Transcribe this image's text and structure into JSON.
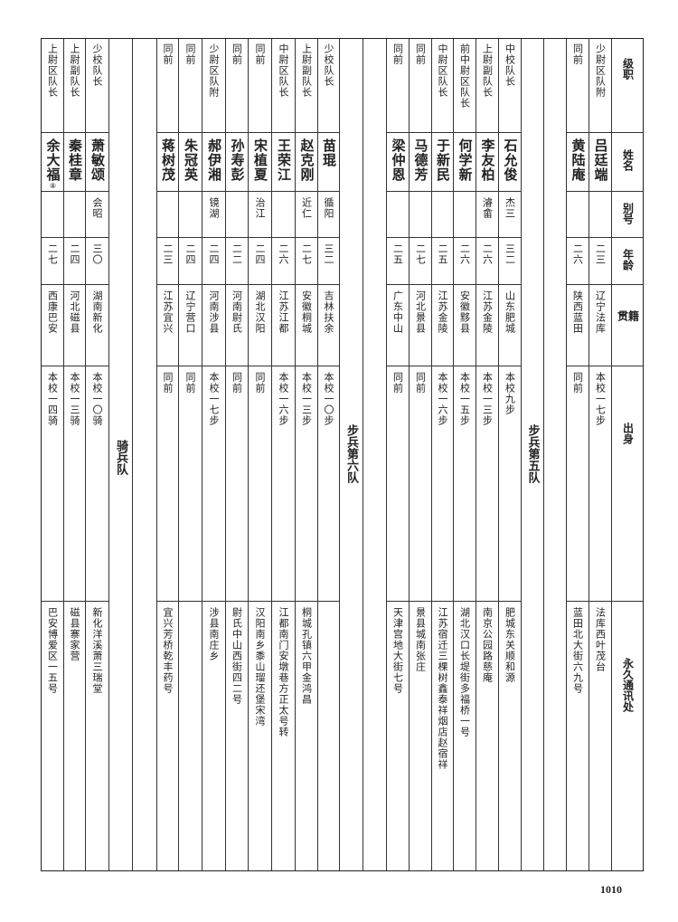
{
  "header": {
    "rank": "级职",
    "name": "姓名",
    "alias": "别号",
    "age": "年龄",
    "native": "籍贯",
    "origin": "出身",
    "address": "永久通讯处"
  },
  "sections": [
    {
      "label": "",
      "entries": [
        {
          "rank": "少尉区队附",
          "name": "吕廷端",
          "alias": "",
          "age": "二三",
          "native": "辽宁法库",
          "origin": "本校一七步",
          "address": "法库西叶茂台"
        },
        {
          "rank": "同前",
          "name": "黄陆庵",
          "alias": "",
          "age": "二六",
          "native": "陕西蓝田",
          "origin": "同前",
          "address": "蓝田北大街六九号"
        }
      ]
    },
    {
      "label": "步兵第五队",
      "entries": [
        {
          "rank": "中校队长",
          "name": "石允俊",
          "alias": "杰三",
          "age": "三二",
          "native": "山东肥城",
          "origin": "本校九步",
          "address": "肥城东关顺和源"
        },
        {
          "rank": "上尉副队长",
          "name": "李友柏",
          "alias": "濬畲",
          "age": "二六",
          "native": "江苏金陵",
          "origin": "本校一三步",
          "address": "南京公园路慈庵"
        },
        {
          "rank": "前中尉区队长",
          "name": "何学新",
          "alias": "",
          "age": "二六",
          "native": "安徽黟县",
          "origin": "本校一五步",
          "address": "湖北汉口长堤街多福桥一号"
        },
        {
          "rank": "中尉区队长",
          "name": "于新民",
          "alias": "",
          "age": "二五",
          "native": "江苏金陵",
          "origin": "本校一六步",
          "address": "江苏宿迁三棵树鑫泰祥烟店赵宿祥"
        },
        {
          "rank": "同前",
          "name": "马德芳",
          "alias": "",
          "age": "二七",
          "native": "河北景县",
          "origin": "同前",
          "address": "景县城南张庄"
        },
        {
          "rank": "同前",
          "name": "梁仲恩",
          "alias": "",
          "age": "二五",
          "native": "广东中山",
          "origin": "同前",
          "address": "天津宫地大街七号"
        }
      ]
    },
    {
      "label": "步兵第六队",
      "entries": [
        {
          "rank": "少校队长",
          "name": "苗琨",
          "alias": "循阳",
          "age": "三二",
          "native": "吉林扶余",
          "origin": "本校一〇步",
          "address": ""
        },
        {
          "rank": "上尉副队长",
          "name": "赵克刚",
          "alias": "近仁",
          "age": "二七",
          "native": "安徽桐城",
          "origin": "本校一三步",
          "address": "桐城孔镇六甲金鸿昌"
        },
        {
          "rank": "中尉区队长",
          "name": "王荣江",
          "alias": "",
          "age": "二六",
          "native": "江苏江都",
          "origin": "本校一六步",
          "address": "江都南门安墩巷方正太号转"
        },
        {
          "rank": "同前",
          "name": "宋植夏",
          "alias": "治江",
          "age": "二四",
          "native": "湖北汉阳",
          "origin": "同前",
          "address": "汉阳南乡黍山瑠还堡宋湾"
        },
        {
          "rank": "同前",
          "name": "孙寿彭",
          "alias": "",
          "age": "二二",
          "native": "河南尉氏",
          "origin": "同前",
          "address": "尉氏中山西街四二号"
        },
        {
          "rank": "少尉区队附",
          "name": "郝伊湘",
          "alias": "镜湖",
          "age": "二四",
          "native": "河南涉县",
          "origin": "本校一七步",
          "address": "涉县南庄乡"
        },
        {
          "rank": "同前",
          "name": "朱冠英",
          "alias": "",
          "age": "二四",
          "native": "辽宁营口",
          "origin": "同前",
          "address": ""
        },
        {
          "rank": "同前",
          "name": "蒋树茂",
          "alias": "",
          "age": "二三",
          "native": "江苏宜兴",
          "origin": "同前",
          "address": "宜兴芳桥乾丰药号"
        }
      ]
    },
    {
      "label": "骑兵队",
      "entries": [
        {
          "rank": "少校队长",
          "name": "萧敏颂",
          "alias": "会昭",
          "age": "三〇",
          "native": "湖南新化",
          "origin": "本校一〇骑",
          "address": "新化洋溪萧三瑞堂"
        },
        {
          "rank": "上尉副队长",
          "name": "秦桂章",
          "alias": "",
          "age": "二四",
          "native": "河北磁县",
          "origin": "本校一三骑",
          "address": "磁县寨家营"
        },
        {
          "rank": "上尉区队长",
          "name": "余大福",
          "note": "⑧",
          "alias": "",
          "age": "二七",
          "native": "西康巴安",
          "origin": "本校一四骑",
          "address": "巴安博爱区一五号"
        }
      ]
    }
  ],
  "page_number": "1010"
}
